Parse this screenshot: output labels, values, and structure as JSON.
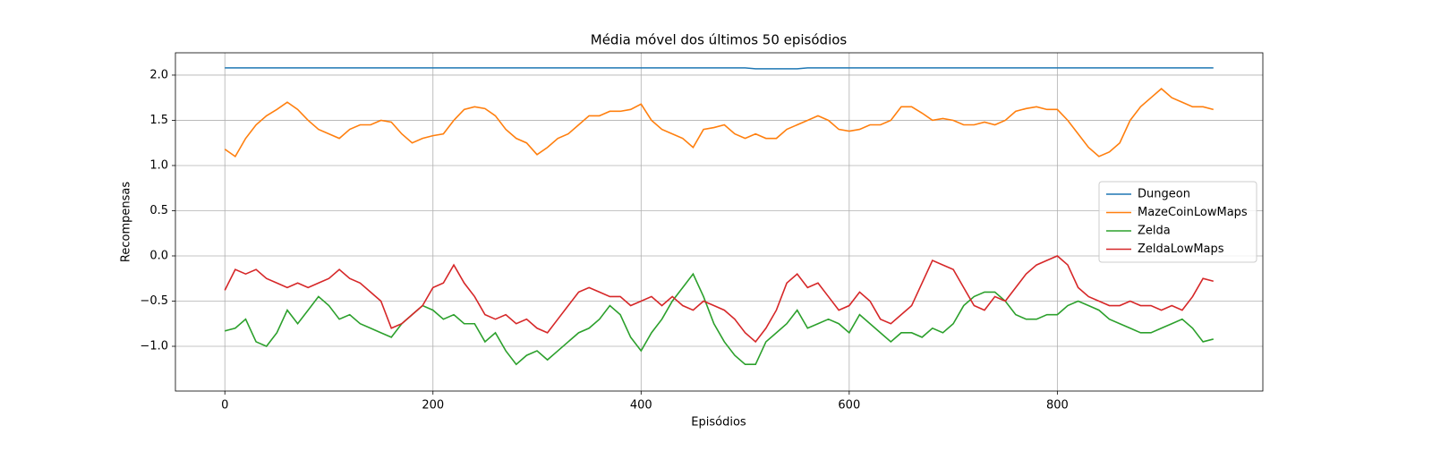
{
  "chart_data": {
    "type": "line",
    "title": "Média móvel dos últimos 50 episódios",
    "xlabel": "Episódios",
    "ylabel": "Recompensas",
    "x": [
      0,
      10,
      20,
      30,
      40,
      50,
      60,
      70,
      80,
      90,
      100,
      110,
      120,
      130,
      140,
      150,
      160,
      170,
      180,
      190,
      200,
      210,
      220,
      230,
      240,
      250,
      260,
      270,
      280,
      290,
      300,
      310,
      320,
      330,
      340,
      350,
      360,
      370,
      380,
      390,
      400,
      410,
      420,
      430,
      440,
      450,
      460,
      470,
      480,
      490,
      500,
      510,
      520,
      530,
      540,
      550,
      560,
      570,
      580,
      590,
      600,
      610,
      620,
      630,
      640,
      650,
      660,
      670,
      680,
      690,
      700,
      710,
      720,
      730,
      740,
      750,
      760,
      770,
      780,
      790,
      800,
      810,
      820,
      830,
      840,
      850,
      860,
      870,
      880,
      890,
      900,
      910,
      920,
      930,
      940,
      950
    ],
    "series": [
      {
        "name": "Dungeon",
        "color": "#1f77b4",
        "values": [
          2.08,
          2.08,
          2.08,
          2.08,
          2.08,
          2.08,
          2.08,
          2.08,
          2.08,
          2.08,
          2.08,
          2.08,
          2.08,
          2.08,
          2.08,
          2.08,
          2.08,
          2.08,
          2.08,
          2.08,
          2.08,
          2.08,
          2.08,
          2.08,
          2.08,
          2.08,
          2.08,
          2.08,
          2.08,
          2.08,
          2.08,
          2.08,
          2.08,
          2.08,
          2.08,
          2.08,
          2.08,
          2.08,
          2.08,
          2.08,
          2.08,
          2.08,
          2.08,
          2.08,
          2.08,
          2.08,
          2.08,
          2.08,
          2.08,
          2.08,
          2.08,
          2.07,
          2.07,
          2.07,
          2.07,
          2.07,
          2.08,
          2.08,
          2.08,
          2.08,
          2.08,
          2.08,
          2.08,
          2.08,
          2.08,
          2.08,
          2.08,
          2.08,
          2.08,
          2.08,
          2.08,
          2.08,
          2.08,
          2.08,
          2.08,
          2.08,
          2.08,
          2.08,
          2.08,
          2.08,
          2.08,
          2.08,
          2.08,
          2.08,
          2.08,
          2.08,
          2.08,
          2.08,
          2.08,
          2.08,
          2.08,
          2.08,
          2.08,
          2.08,
          2.08,
          2.08
        ]
      },
      {
        "name": "MazeCoinLowMaps",
        "color": "#ff7f0e",
        "values": [
          1.18,
          1.1,
          1.3,
          1.45,
          1.55,
          1.62,
          1.7,
          1.62,
          1.5,
          1.4,
          1.35,
          1.3,
          1.4,
          1.45,
          1.45,
          1.5,
          1.48,
          1.35,
          1.25,
          1.3,
          1.33,
          1.35,
          1.5,
          1.62,
          1.65,
          1.63,
          1.55,
          1.4,
          1.3,
          1.25,
          1.12,
          1.2,
          1.3,
          1.35,
          1.45,
          1.55,
          1.55,
          1.6,
          1.6,
          1.62,
          1.68,
          1.5,
          1.4,
          1.35,
          1.3,
          1.2,
          1.4,
          1.42,
          1.45,
          1.35,
          1.3,
          1.35,
          1.3,
          1.3,
          1.4,
          1.45,
          1.5,
          1.55,
          1.5,
          1.4,
          1.38,
          1.4,
          1.45,
          1.45,
          1.5,
          1.65,
          1.65,
          1.58,
          1.5,
          1.52,
          1.5,
          1.45,
          1.45,
          1.48,
          1.45,
          1.5,
          1.6,
          1.63,
          1.65,
          1.62,
          1.62,
          1.5,
          1.35,
          1.2,
          1.1,
          1.15,
          1.25,
          1.5,
          1.65,
          1.75,
          1.85,
          1.75,
          1.7,
          1.65,
          1.65,
          1.62
        ]
      },
      {
        "name": "Zelda",
        "color": "#2ca02c",
        "values": [
          -0.83,
          -0.8,
          -0.7,
          -0.95,
          -1.0,
          -0.85,
          -0.6,
          -0.75,
          -0.6,
          -0.45,
          -0.55,
          -0.7,
          -0.65,
          -0.75,
          -0.8,
          -0.85,
          -0.9,
          -0.75,
          -0.65,
          -0.55,
          -0.6,
          -0.7,
          -0.65,
          -0.75,
          -0.75,
          -0.95,
          -0.85,
          -1.05,
          -1.2,
          -1.1,
          -1.05,
          -1.15,
          -1.05,
          -0.95,
          -0.85,
          -0.8,
          -0.7,
          -0.55,
          -0.65,
          -0.9,
          -1.05,
          -0.85,
          -0.7,
          -0.5,
          -0.35,
          -0.2,
          -0.45,
          -0.75,
          -0.95,
          -1.1,
          -1.2,
          -1.2,
          -0.95,
          -0.85,
          -0.75,
          -0.6,
          -0.8,
          -0.75,
          -0.7,
          -0.75,
          -0.85,
          -0.65,
          -0.75,
          -0.85,
          -0.95,
          -0.85,
          -0.85,
          -0.9,
          -0.8,
          -0.85,
          -0.75,
          -0.55,
          -0.45,
          -0.4,
          -0.4,
          -0.5,
          -0.65,
          -0.7,
          -0.7,
          -0.65,
          -0.65,
          -0.55,
          -0.5,
          -0.55,
          -0.6,
          -0.7,
          -0.75,
          -0.8,
          -0.85,
          -0.85,
          -0.8,
          -0.75,
          -0.7,
          -0.8,
          -0.95,
          -0.92
        ]
      },
      {
        "name": "ZeldaLowMaps",
        "color": "#d62728",
        "values": [
          -0.38,
          -0.15,
          -0.2,
          -0.15,
          -0.25,
          -0.3,
          -0.35,
          -0.3,
          -0.35,
          -0.3,
          -0.25,
          -0.15,
          -0.25,
          -0.3,
          -0.4,
          -0.5,
          -0.8,
          -0.75,
          -0.65,
          -0.55,
          -0.35,
          -0.3,
          -0.1,
          -0.3,
          -0.45,
          -0.65,
          -0.7,
          -0.65,
          -0.75,
          -0.7,
          -0.8,
          -0.85,
          -0.7,
          -0.55,
          -0.4,
          -0.35,
          -0.4,
          -0.45,
          -0.45,
          -0.55,
          -0.5,
          -0.45,
          -0.55,
          -0.45,
          -0.55,
          -0.6,
          -0.5,
          -0.55,
          -0.6,
          -0.7,
          -0.85,
          -0.95,
          -0.8,
          -0.6,
          -0.3,
          -0.2,
          -0.35,
          -0.3,
          -0.45,
          -0.6,
          -0.55,
          -0.4,
          -0.5,
          -0.7,
          -0.75,
          -0.65,
          -0.55,
          -0.3,
          -0.05,
          -0.1,
          -0.15,
          -0.35,
          -0.55,
          -0.6,
          -0.45,
          -0.5,
          -0.35,
          -0.2,
          -0.1,
          -0.05,
          0.0,
          -0.1,
          -0.35,
          -0.45,
          -0.5,
          -0.55,
          -0.55,
          -0.5,
          -0.55,
          -0.55,
          -0.6,
          -0.55,
          -0.6,
          -0.45,
          -0.25,
          -0.28
        ]
      }
    ],
    "xlim": [
      -47.5,
      997.5
    ],
    "xticks": [
      0,
      200,
      400,
      600,
      800
    ],
    "ylim": [
      -1.495,
      2.247
    ],
    "yticks": [
      {
        "value": -1.0,
        "label": "−1.0"
      },
      {
        "value": -0.5,
        "label": "−0.5"
      },
      {
        "value": 0.0,
        "label": "0.0"
      },
      {
        "value": 0.5,
        "label": "0.5"
      },
      {
        "value": 1.0,
        "label": "1.0"
      },
      {
        "value": 1.5,
        "label": "1.5"
      },
      {
        "value": 2.0,
        "label": "2.0"
      }
    ],
    "grid": true,
    "legend": "center right"
  }
}
